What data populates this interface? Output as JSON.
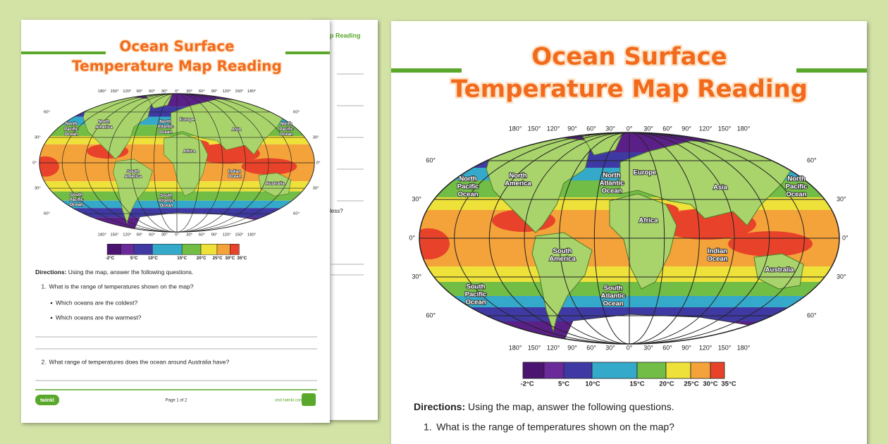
{
  "back_page": {
    "title_fragment": "p Reading",
    "question_fragment": "less?"
  },
  "worksheet": {
    "title": [
      "Ocean Surface",
      "Temperature Map Reading"
    ],
    "map": {
      "longitudes": [
        "180°",
        "150°",
        "120°",
        "90°",
        "60°",
        "30°",
        "0°",
        "30°",
        "60°",
        "90°",
        "120°",
        "150°",
        "180°"
      ],
      "latitudes": [
        "60°",
        "30°",
        "0°",
        "30°",
        "60°"
      ],
      "labels": [
        {
          "lines": [
            "North",
            "Pacific",
            "Ocean"
          ]
        },
        {
          "lines": [
            "North",
            "America"
          ]
        },
        {
          "lines": [
            "North",
            "Atlantic",
            "Ocean"
          ]
        },
        {
          "lines": [
            "Europe"
          ]
        },
        {
          "lines": [
            "Asia"
          ]
        },
        {
          "lines": [
            "North",
            "Pacific",
            "Ocean"
          ]
        },
        {
          "lines": [
            "Africa"
          ]
        },
        {
          "lines": [
            "South",
            "America"
          ]
        },
        {
          "lines": [
            "Indian",
            "Ocean"
          ]
        },
        {
          "lines": [
            "Australia"
          ]
        },
        {
          "lines": [
            "South",
            "Pacific",
            "Ocean"
          ]
        },
        {
          "lines": [
            "South",
            "Atlantic",
            "Ocean"
          ]
        }
      ]
    },
    "legend": [
      "-2°C",
      "5°C",
      "10°C",
      "15°C",
      "20°C",
      "25°C",
      "30°C",
      "35°C"
    ],
    "directions": {
      "label": "Directions:",
      "text": " Using the map, answer the following questions."
    },
    "questions": [
      {
        "number": "1.",
        "text": "What is the range of temperatures shown on the map?",
        "sub": [
          "Which oceans are the coldest?",
          "Which oceans are the warmest?"
        ]
      },
      {
        "number": "2.",
        "text": "What range of temperatures does the ocean around Australia have?"
      }
    ],
    "footer": {
      "logo": "twinkl",
      "page": "Page 1 of 2",
      "site": "visit twinkl.com"
    }
  }
}
